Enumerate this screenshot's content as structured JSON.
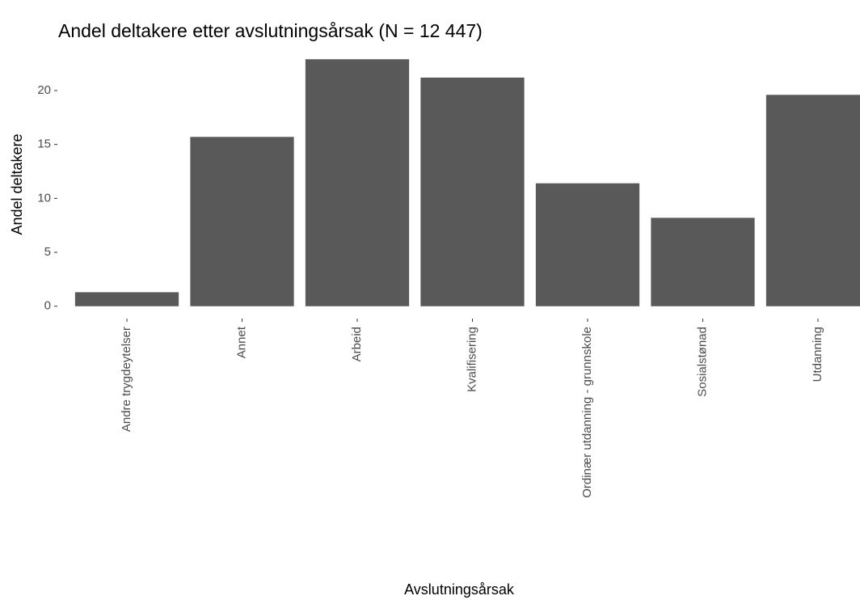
{
  "chart_data": {
    "type": "bar",
    "title": "Andel deltakere etter avslutningsårsak (N = 12 447)",
    "x_label": "Avslutningsårsak",
    "y_label": "Andel deltakere",
    "categories": [
      "Andre trygdeytelser",
      "Annet",
      "Arbeid",
      "Kvalifisering",
      "Ordinær utdanning - grunnskole",
      "Sosialstønad",
      "Utdanning"
    ],
    "values": [
      1.3,
      15.7,
      22.9,
      21.2,
      11.4,
      8.2,
      19.6
    ],
    "color": "#595959",
    "ylim": [
      -1.145,
      24.045
    ],
    "yticks": [
      0,
      5,
      10,
      15,
      20
    ],
    "grid": false
  }
}
